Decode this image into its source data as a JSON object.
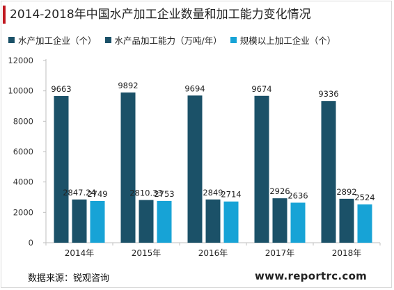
{
  "title": "2014-2018年中国水产加工企业数量和加工能力变化情况",
  "source": "数据来源：锐观咨询",
  "website": "www.reportrc.com",
  "colors": {
    "accent": "#c0181f",
    "series": [
      "#1b5168",
      "#1b5168",
      "#17a3d6"
    ]
  },
  "legend": [
    {
      "label": "水产加工企业（个）"
    },
    {
      "label": "水产品加工能力（万吨/年）"
    },
    {
      "label": "规模以上加工企业（个）"
    }
  ],
  "chart_data": {
    "type": "bar",
    "title": "2014-2018年中国水产加工企业数量和加工能力变化情况",
    "categories": [
      "2014年",
      "2015年",
      "2016年",
      "2017年",
      "2018年"
    ],
    "series": [
      {
        "name": "水产加工企业（个）",
        "values": [
          9663,
          9892,
          9694,
          9674,
          9336
        ],
        "labels": [
          "9663",
          "9892",
          "9694",
          "9674",
          "9336"
        ]
      },
      {
        "name": "水产品加工能力（万吨/年）",
        "values": [
          2847.24,
          2810.33,
          2849,
          2926,
          2892
        ],
        "labels": [
          "2847.24",
          "2810.33",
          "2849",
          "2926",
          "2892"
        ]
      },
      {
        "name": "规模以上加工企业（个）",
        "values": [
          2749,
          2753,
          2714,
          2636,
          2524
        ],
        "labels": [
          "2749",
          "2753",
          "2714",
          "2636",
          "2524"
        ]
      }
    ],
    "yticks": [
      "0",
      "2000",
      "4000",
      "6000",
      "8000",
      "10000",
      "12000"
    ],
    "ylim": [
      0,
      12000
    ],
    "grid": false,
    "legend_position": "top"
  }
}
